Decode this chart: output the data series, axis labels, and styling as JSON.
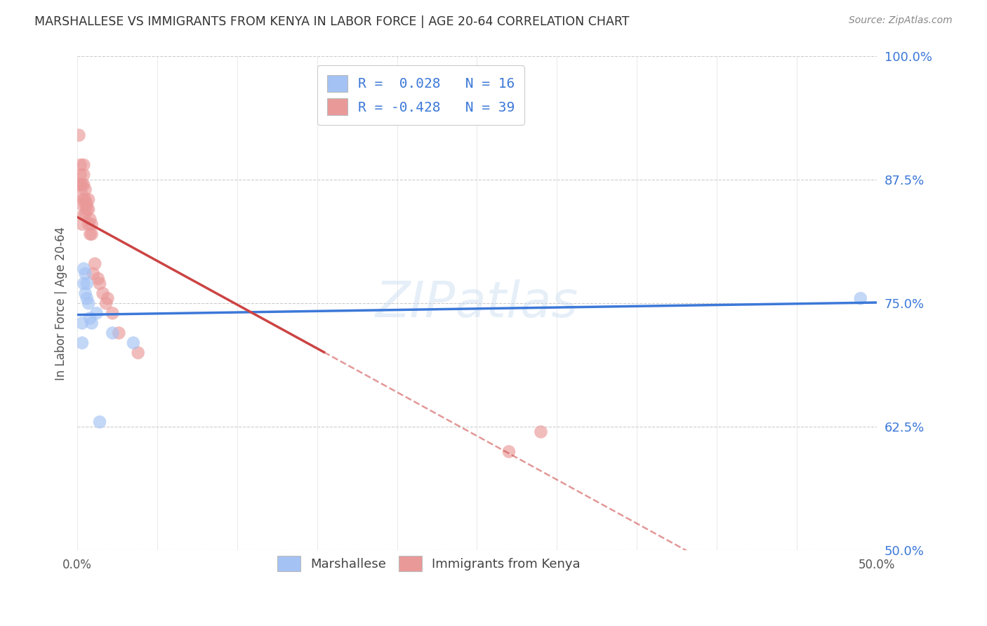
{
  "title": "MARSHALLESE VS IMMIGRANTS FROM KENYA IN LABOR FORCE | AGE 20-64 CORRELATION CHART",
  "source": "Source: ZipAtlas.com",
  "ylabel": "In Labor Force | Age 20-64",
  "xlim": [
    0.0,
    0.5
  ],
  "ylim": [
    0.5,
    1.0
  ],
  "yticks": [
    0.5,
    0.625,
    0.75,
    0.875,
    1.0
  ],
  "yticklabels": [
    "50.0%",
    "62.5%",
    "75.0%",
    "87.5%",
    "100.0%"
  ],
  "xticks": [
    0.0,
    0.05,
    0.1,
    0.15,
    0.2,
    0.25,
    0.3,
    0.35,
    0.4,
    0.45,
    0.5
  ],
  "xticklabels": [
    "0.0%",
    "",
    "",
    "",
    "",
    "",
    "",
    "",
    "",
    "",
    "50.0%"
  ],
  "marshallese_x": [
    0.003,
    0.003,
    0.004,
    0.004,
    0.005,
    0.005,
    0.006,
    0.006,
    0.007,
    0.008,
    0.009,
    0.012,
    0.014,
    0.022,
    0.035,
    0.49
  ],
  "marshallese_y": [
    0.71,
    0.73,
    0.77,
    0.785,
    0.76,
    0.78,
    0.755,
    0.77,
    0.75,
    0.735,
    0.73,
    0.74,
    0.63,
    0.72,
    0.71,
    0.755
  ],
  "kenya_x": [
    0.001,
    0.001,
    0.002,
    0.002,
    0.002,
    0.003,
    0.003,
    0.003,
    0.003,
    0.004,
    0.004,
    0.004,
    0.004,
    0.004,
    0.005,
    0.005,
    0.005,
    0.005,
    0.006,
    0.006,
    0.007,
    0.007,
    0.007,
    0.008,
    0.008,
    0.009,
    0.009,
    0.01,
    0.011,
    0.013,
    0.014,
    0.016,
    0.018,
    0.019,
    0.022,
    0.026,
    0.038,
    0.27,
    0.29
  ],
  "kenya_y": [
    0.92,
    0.87,
    0.87,
    0.88,
    0.89,
    0.83,
    0.85,
    0.86,
    0.87,
    0.84,
    0.855,
    0.87,
    0.88,
    0.89,
    0.84,
    0.85,
    0.855,
    0.865,
    0.845,
    0.85,
    0.83,
    0.845,
    0.855,
    0.82,
    0.835,
    0.82,
    0.83,
    0.78,
    0.79,
    0.775,
    0.77,
    0.76,
    0.75,
    0.755,
    0.74,
    0.72,
    0.7,
    0.6,
    0.62
  ],
  "r_marshallese": 0.028,
  "n_marshallese": 16,
  "r_kenya": -0.428,
  "n_kenya": 39,
  "blue_scatter_color": "#a4c2f4",
  "pink_scatter_color": "#ea9999",
  "blue_line_color": "#3c78d8",
  "pink_line_color": "#cc4444",
  "blue_legend_color": "#a4c2f4",
  "pink_legend_color": "#ea9999",
  "watermark": "ZIPatlas",
  "background_color": "#ffffff",
  "grid_color": "#cccccc",
  "tick_label_color": "#3c78d8",
  "title_color": "#333333",
  "source_color": "#888888"
}
